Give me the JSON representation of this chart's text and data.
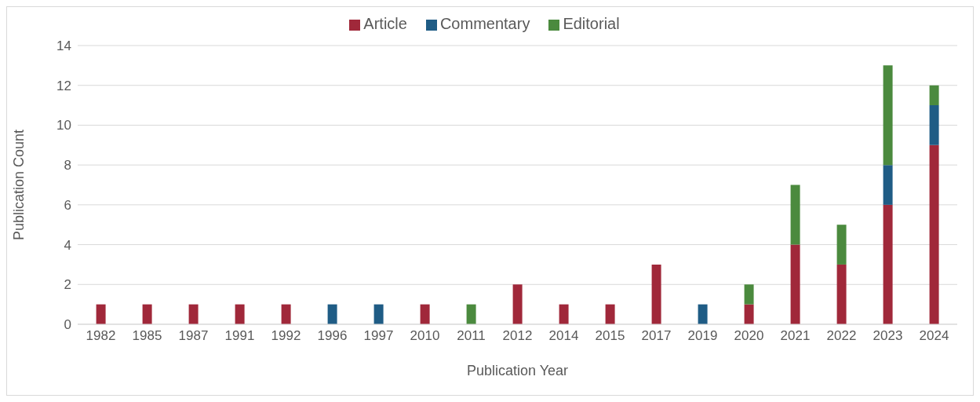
{
  "chart_data": {
    "type": "bar",
    "stacked": true,
    "xlabel": "Publication Year",
    "ylabel": "Publication Count",
    "categories": [
      "1982",
      "1985",
      "1987",
      "1991",
      "1992",
      "1996",
      "1997",
      "2010",
      "2011",
      "2012",
      "2014",
      "2015",
      "2017",
      "2019",
      "2020",
      "2021",
      "2022",
      "2023",
      "2024"
    ],
    "series": [
      {
        "name": "Article",
        "color": "#a0283a",
        "values": [
          1,
          1,
          1,
          1,
          1,
          null,
          null,
          1,
          null,
          2,
          1,
          1,
          3,
          null,
          1,
          4,
          3,
          6,
          9
        ]
      },
      {
        "name": "Commentary",
        "color": "#1f5c85",
        "values": [
          null,
          null,
          null,
          null,
          null,
          1,
          1,
          null,
          null,
          null,
          null,
          null,
          null,
          1,
          null,
          null,
          null,
          2,
          2
        ]
      },
      {
        "name": "Editorial",
        "color": "#4b8a3e",
        "values": [
          null,
          null,
          null,
          null,
          null,
          null,
          null,
          null,
          1,
          null,
          null,
          null,
          null,
          null,
          1,
          3,
          2,
          5,
          1
        ]
      }
    ],
    "ylim": [
      0,
      14
    ],
    "yticks": [
      0,
      2,
      4,
      6,
      8,
      10,
      12,
      14
    ],
    "grid": "y",
    "legend": "top"
  }
}
